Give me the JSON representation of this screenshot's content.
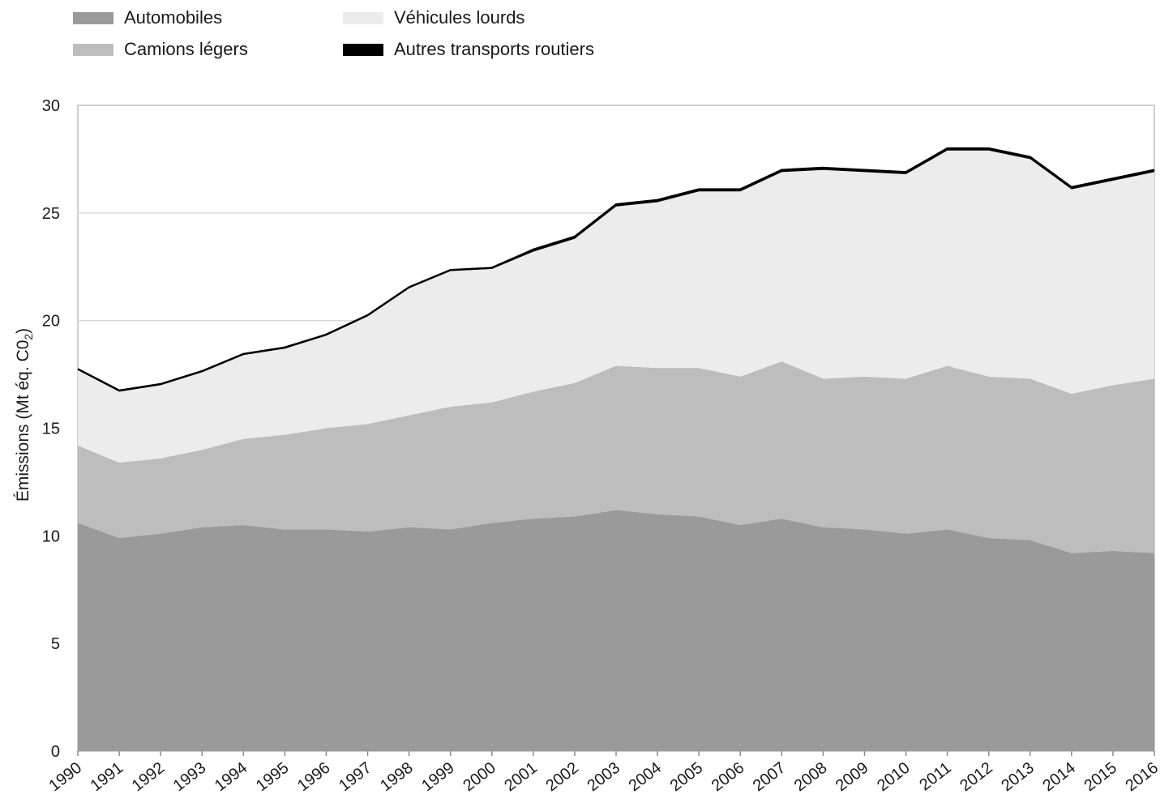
{
  "chart_data": {
    "type": "area",
    "stacked": true,
    "title": "",
    "xlabel": "",
    "ylabel": "Émissions (Mt éq. C0",
    "ylabel_subscript": "2",
    "ylabel_close": ")",
    "ylim": [
      0,
      30
    ],
    "yticks": [
      0,
      5,
      10,
      15,
      20,
      25,
      30
    ],
    "grid": "horizontal",
    "legend_position": "top-left",
    "x": [
      "1990",
      "1991",
      "1992",
      "1993",
      "1994",
      "1995",
      "1996",
      "1997",
      "1998",
      "1999",
      "2000",
      "2001",
      "2002",
      "2003",
      "2004",
      "2005",
      "2006",
      "2007",
      "2008",
      "2009",
      "2010",
      "2011",
      "2012",
      "2013",
      "2014",
      "2015",
      "2016"
    ],
    "series": [
      {
        "name": "Automobiles",
        "color": "#9a9a9a",
        "values": [
          10.6,
          9.9,
          10.1,
          10.4,
          10.5,
          10.3,
          10.3,
          10.2,
          10.4,
          10.3,
          10.6,
          10.8,
          10.9,
          11.2,
          11.0,
          10.9,
          10.5,
          10.8,
          10.4,
          10.3,
          10.1,
          10.3,
          9.9,
          9.8,
          9.2,
          9.3,
          9.2
        ]
      },
      {
        "name": "Camions légers",
        "color": "#bdbdbd",
        "values": [
          3.6,
          3.5,
          3.5,
          3.6,
          4.0,
          4.4,
          4.7,
          5.0,
          5.2,
          5.7,
          5.6,
          5.9,
          6.2,
          6.7,
          6.8,
          6.9,
          6.9,
          7.3,
          6.9,
          7.1,
          7.2,
          7.6,
          7.5,
          7.5,
          7.4,
          7.7,
          8.1
        ]
      },
      {
        "name": "Véhicules lourds",
        "color": "#ececec",
        "values": [
          3.5,
          3.3,
          3.4,
          3.6,
          3.9,
          4.0,
          4.3,
          5.0,
          5.9,
          6.3,
          6.2,
          6.5,
          6.7,
          7.4,
          7.7,
          8.2,
          8.6,
          8.8,
          9.7,
          9.5,
          9.5,
          10.0,
          10.5,
          10.2,
          9.5,
          9.5,
          9.6
        ]
      },
      {
        "name": "Autres transports routiers",
        "color": "#000000",
        "values": [
          0.05,
          0.05,
          0.05,
          0.05,
          0.05,
          0.05,
          0.05,
          0.05,
          0.05,
          0.05,
          0.05,
          0.1,
          0.1,
          0.1,
          0.1,
          0.1,
          0.1,
          0.1,
          0.1,
          0.1,
          0.1,
          0.1,
          0.1,
          0.1,
          0.1,
          0.1,
          0.1
        ]
      }
    ]
  }
}
